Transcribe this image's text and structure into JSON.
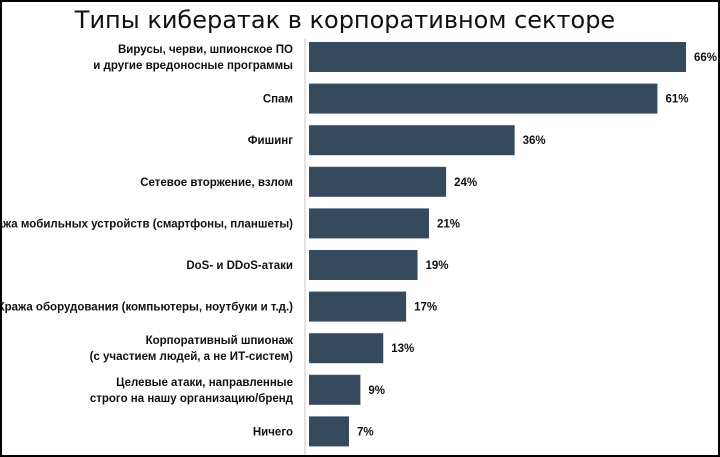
{
  "chart_data": {
    "type": "bar",
    "orientation": "horizontal",
    "title": "Типы кибератак в корпоративном секторе",
    "categories": [
      [
        "Вирусы, черви, шпионское ПО",
        "и другие вредоносные программы"
      ],
      [
        "Спам"
      ],
      [
        "Фишинг"
      ],
      [
        "Сетевое вторжение, взлом"
      ],
      [
        "Кража мобильных устройств (смартфоны, планшеты)"
      ],
      [
        "DoS- и DDoS-атаки"
      ],
      [
        "Кража оборудования (компьютеры, ноутбуки и т.д.)"
      ],
      [
        "Корпоративный шпионаж",
        "(с участием людей, а не ИТ-систем)"
      ],
      [
        "Целевые атаки, направленные",
        "строго на нашу организацию/бренд"
      ],
      [
        "Ничего"
      ]
    ],
    "values": [
      66,
      61,
      36,
      24,
      21,
      19,
      17,
      13,
      9,
      7
    ],
    "value_labels": [
      "66%",
      "61%",
      "36%",
      "24%",
      "21%",
      "19%",
      "17%",
      "13%",
      "9%",
      "7%"
    ],
    "unit": "%",
    "xlim": [
      0,
      66
    ],
    "grid": false,
    "legend": "none",
    "bar_color": "#364a5e",
    "axis_color": "#d9d9d9"
  }
}
